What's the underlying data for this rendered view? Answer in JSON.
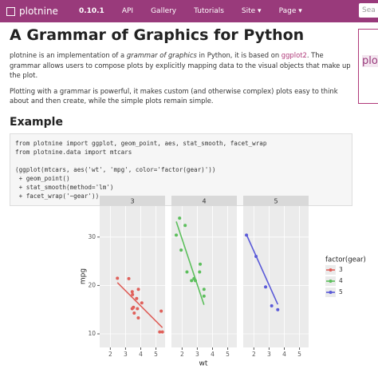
{
  "navbar": {
    "brand": "plotnine",
    "version": "0.10.1",
    "links": [
      "API",
      "Gallery",
      "Tutorials",
      "Site ▾",
      "Page ▾"
    ],
    "search": "Sea"
  },
  "sidebar_logo": "plo",
  "title": "A Grammar of Graphics for Python",
  "intro": [
    "plotnine is an implementation of a ",
    "grammar of graphics",
    " in Python, it is based on ",
    "ggplot2",
    ". The grammar allows users to compose plots by explicitly mapping data to the visual objects that make up the plot."
  ],
  "intro2": "Plotting with a grammar is powerful, it makes custom (and otherwise complex) plots easy to think about and then create, while the simple plots remain simple.",
  "example_heading": "Example",
  "code": {
    "imports": [
      "from plotnine import ggplot, geom_point, aes, stat_smooth, facet_wrap",
      "from plotnine.data import mtcars"
    ],
    "expr": [
      "(ggplot(mtcars, aes('wt', 'mpg', color='factor(gear)'))",
      " + geom_point()",
      " + stat_smooth(method='lm')",
      " + facet_wrap('~gear'))"
    ]
  },
  "chart_data": {
    "type": "scatter",
    "x_label": "wt",
    "y_label": "mpg",
    "xlim": [
      1.3,
      5.6
    ],
    "ylim": [
      7.2,
      36.4
    ],
    "xticks": [
      2,
      3,
      4,
      5
    ],
    "yticks": [
      10,
      20,
      30
    ],
    "grid": true,
    "legend_title": "factor(gear)",
    "series": [
      {
        "name": "3",
        "color": "#e0605a",
        "x": [
          3.215,
          3.44,
          3.46,
          3.57,
          4.07,
          3.73,
          3.78,
          5.25,
          5.424,
          5.345,
          2.465,
          3.52,
          3.435,
          3.84,
          3.845
        ],
        "values": [
          21.4,
          18.7,
          18.1,
          14.3,
          16.4,
          17.3,
          15.2,
          10.4,
          10.4,
          14.7,
          21.5,
          15.5,
          15.2,
          13.3,
          19.2
        ],
        "fit_x": [
          2.465,
          5.424
        ],
        "fit_y": [
          20.6,
          11.3
        ]
      },
      {
        "name": "4",
        "color": "#5cbf5c",
        "x": [
          2.62,
          2.875,
          2.32,
          3.19,
          3.15,
          3.44,
          3.44,
          2.2,
          1.615,
          1.835,
          1.935,
          2.78
        ],
        "values": [
          21,
          21,
          22.8,
          24.4,
          22.8,
          19.2,
          17.8,
          32.4,
          30.4,
          33.9,
          27.3,
          21.4
        ],
        "fit_x": [
          1.615,
          3.44
        ],
        "fit_y": [
          33.2,
          16.0
        ]
      },
      {
        "name": "5",
        "color": "#5a5ad8",
        "x": [
          2.14,
          1.513,
          3.17,
          2.77,
          3.57
        ],
        "values": [
          26,
          30.4,
          15.8,
          19.7,
          15
        ],
        "fit_x": [
          1.513,
          3.57
        ],
        "fit_y": [
          30.5,
          16.1
        ]
      }
    ]
  }
}
